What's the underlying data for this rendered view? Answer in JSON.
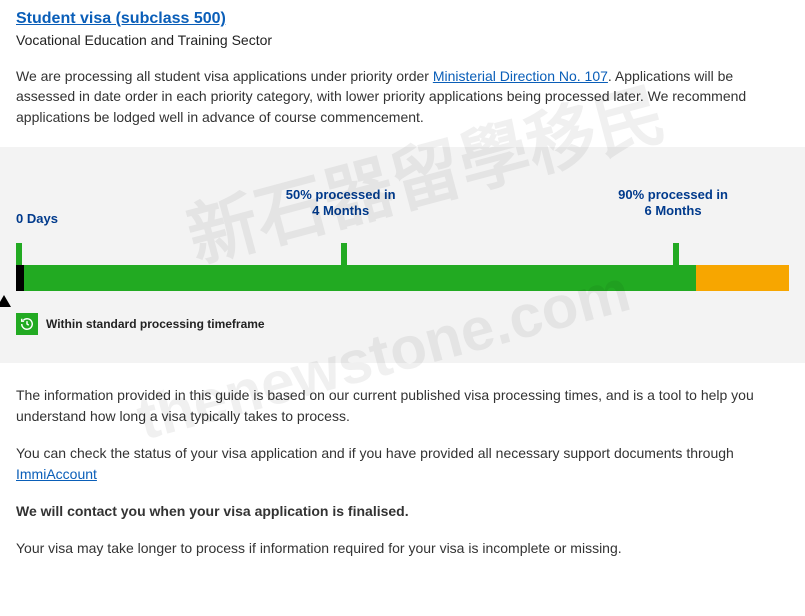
{
  "header": {
    "title": "Student visa (subclass 500)",
    "subtitle": "Vocational Education and Training Sector"
  },
  "intro": {
    "pre": "We are processing all student visa applications under priority order ",
    "link": "Ministerial Direction No. 107",
    "post": ". Applications will be assessed in date order in each priority category, with lower priority applications being processed later. We recommend applications be lodged well in advance of course commencement."
  },
  "chart": {
    "start_label": "0 Days",
    "mid_label_line1": "50% processed in",
    "mid_label_line2": "4 Months",
    "right_label_line1": "90% processed in",
    "right_label_line2": "6 Months",
    "mid_position_pct": 42,
    "right_position_pct": 85,
    "green_end_pct": 88,
    "colors": {
      "green": "#22aa22",
      "orange": "#f7a600",
      "black": "#000000",
      "label": "#003a8c",
      "panel_bg": "#f3f3f3"
    },
    "legend": "Within standard processing timeframe"
  },
  "info": {
    "p1": "The information provided in this guide is based on our current published visa processing times, and is a tool to help you understand how long a visa typically takes to process.",
    "p2_pre": "You can check the status of your visa application and if you have provided all necessary support documents through ",
    "p2_link": "ImmiAccount",
    "p3": "We will contact you when your visa application is finalised.",
    "p4": "Your visa may take longer to process if information required for your visa is incomplete or missing."
  },
  "watermarks": {
    "w1": "新石器留學移民",
    "w2": "thenewstone.com"
  }
}
